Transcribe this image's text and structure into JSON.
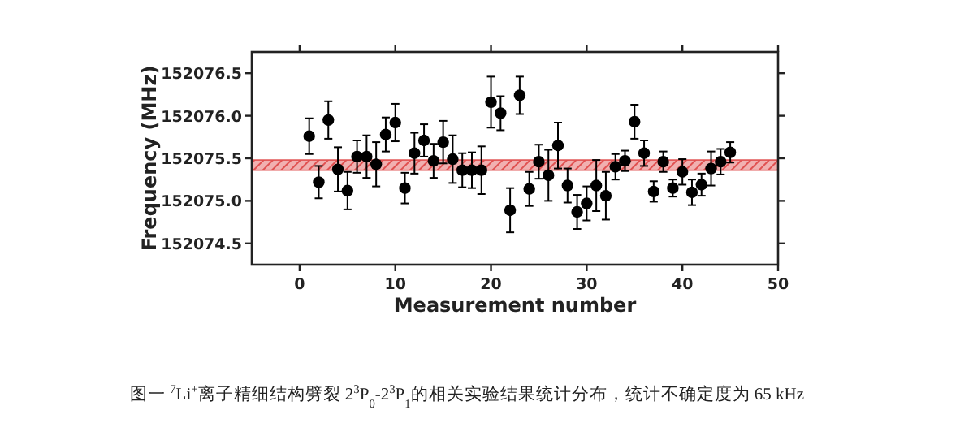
{
  "chart_data": {
    "type": "scatter",
    "xlabel": "Measurement number",
    "ylabel": "Frequency (MHz)",
    "xlim": [
      -5,
      50
    ],
    "xticks": [
      0,
      10,
      20,
      30,
      40,
      50
    ],
    "ylim": [
      152074.25,
      152076.75
    ],
    "yticks": [
      {
        "value": 152074.5,
        "label": "152074.5"
      },
      {
        "value": 152075,
        "label": "152075.0"
      },
      {
        "value": 152075.5,
        "label": "152075.5"
      },
      {
        "value": 152076,
        "label": "152076.0"
      },
      {
        "value": 152076.5,
        "label": "152076.5"
      }
    ],
    "marker": "circle",
    "x": [
      1,
      2,
      3,
      4,
      5,
      6,
      7,
      8,
      9,
      10,
      11,
      12,
      13,
      14,
      15,
      16,
      17,
      18,
      19,
      20,
      21,
      22,
      23,
      24,
      25,
      26,
      27,
      28,
      29,
      30,
      31,
      32,
      33,
      34,
      35,
      36,
      37,
      38,
      39,
      40,
      41,
      42,
      43,
      44,
      45
    ],
    "series": [
      {
        "color": "#000000",
        "values": [
          152075.76,
          152075.22,
          152075.95,
          152075.37,
          152075.12,
          152075.52,
          152075.52,
          152075.43,
          152075.78,
          152075.92,
          152075.15,
          152075.56,
          152075.71,
          152075.47,
          152075.69,
          152075.49,
          152075.36,
          152075.36,
          152075.36,
          152076.16,
          152076.03,
          152074.89,
          152076.24,
          152075.14,
          152075.46,
          152075.3,
          152075.65,
          152075.18,
          152074.87,
          152074.97,
          152075.18,
          152075.06,
          152075.4,
          152075.47,
          152075.93,
          152075.56,
          152075.11,
          152075.46,
          152075.15,
          152075.34,
          152075.1,
          152075.19,
          152075.38,
          152075.46,
          152075.57
        ],
        "errors": [
          0.21,
          0.19,
          0.22,
          0.26,
          0.22,
          0.19,
          0.25,
          0.26,
          0.2,
          0.22,
          0.18,
          0.24,
          0.19,
          0.2,
          0.25,
          0.28,
          0.2,
          0.21,
          0.28,
          0.3,
          0.2,
          0.26,
          0.22,
          0.2,
          0.2,
          0.3,
          0.27,
          0.2,
          0.2,
          0.2,
          0.3,
          0.28,
          0.15,
          0.12,
          0.2,
          0.15,
          0.12,
          0.12,
          0.1,
          0.15,
          0.15,
          0.13,
          0.2,
          0.15,
          0.12
        ]
      }
    ],
    "bands": [
      {
        "axis": "y",
        "from": 152075.36,
        "to": 152075.48,
        "color": "#e05050"
      }
    ],
    "annotations": [
      "图一 $^{7}$Li$^{+}$离子精细结构劈裂 2$^{3}$P$_{0}$-2$^{3}$P$_{1}$的相关实验结果统计分布，统计不确定度为 65 kHz"
    ]
  }
}
